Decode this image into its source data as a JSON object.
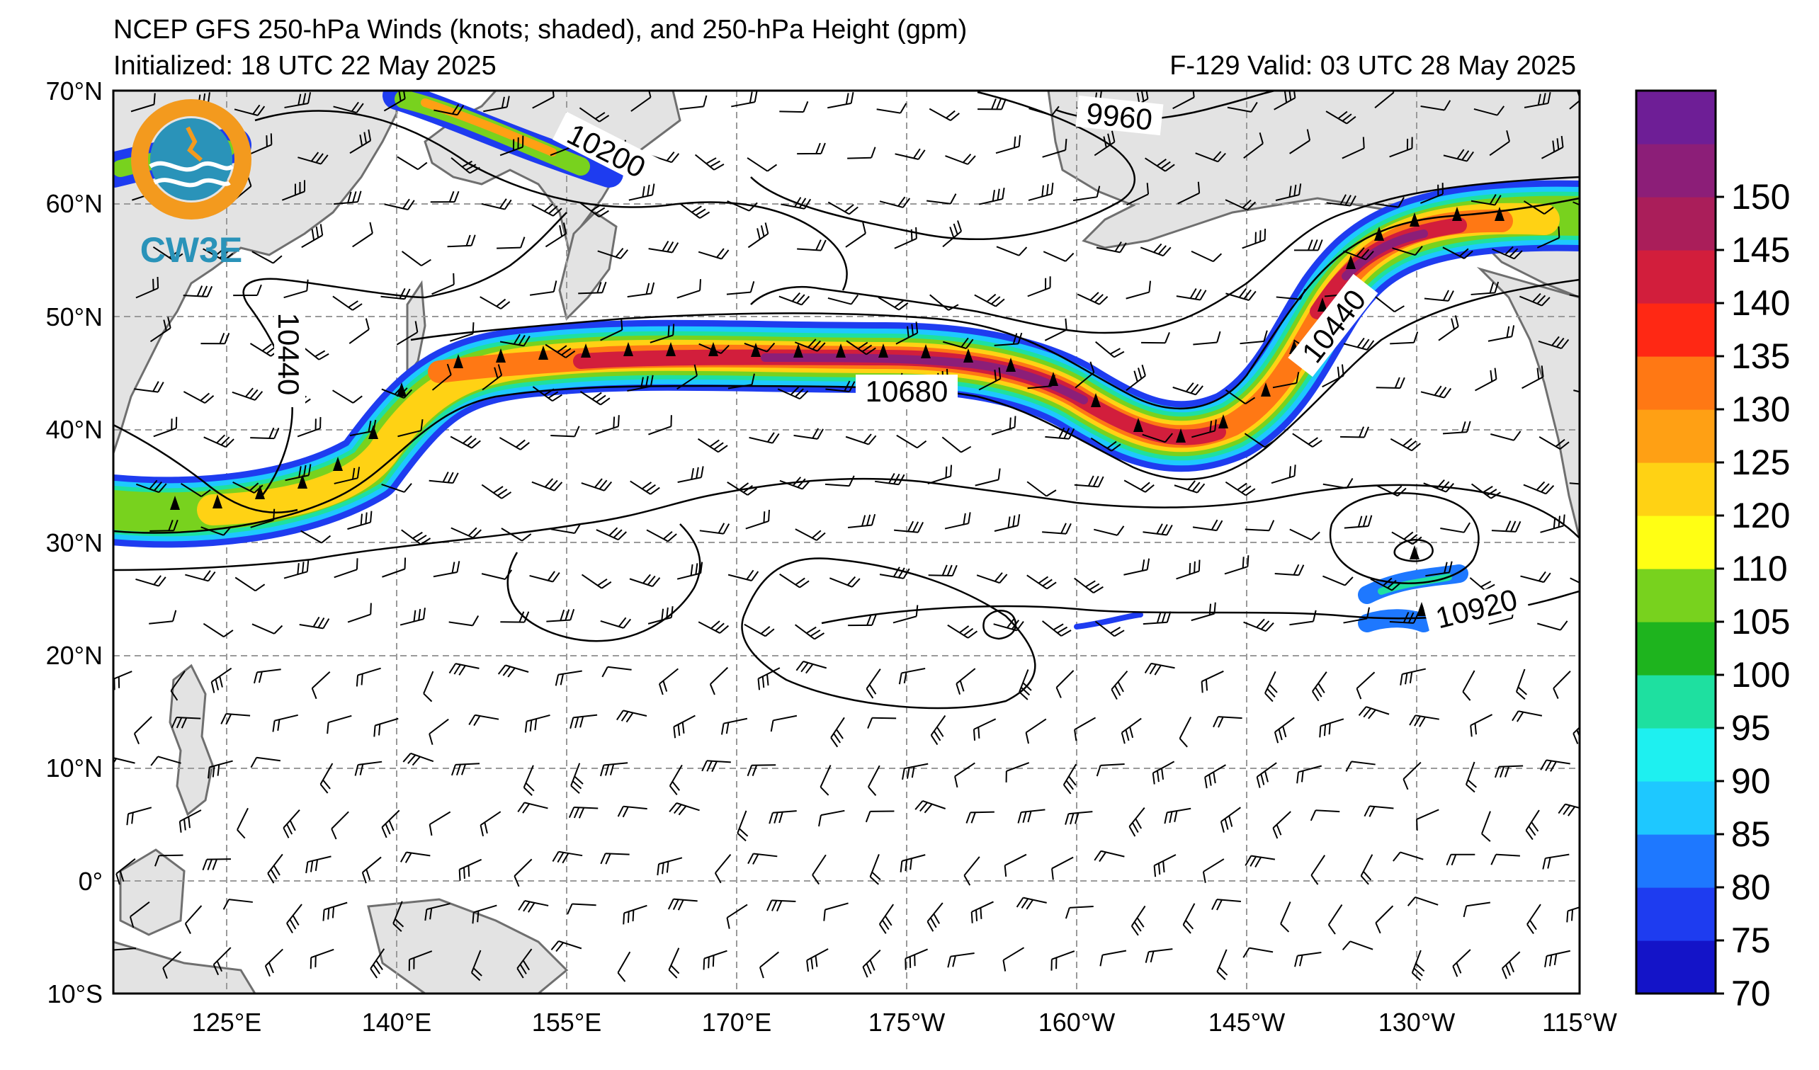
{
  "header": {
    "title": "NCEP GFS 250-hPa Winds (knots; shaded), and 250-hPa Height (gpm)",
    "initialized": "Initialized: 18 UTC 22 May 2025",
    "valid": "F-129  Valid: 03 UTC 28 May 2025"
  },
  "logo": {
    "text": "CW3E"
  },
  "lat_labels": [
    "70°N",
    "60°N",
    "50°N",
    "40°N",
    "30°N",
    "20°N",
    "10°N",
    "0°",
    "10°S"
  ],
  "lon_labels": [
    "125°E",
    "140°E",
    "155°E",
    "170°E",
    "175°W",
    "160°W",
    "145°W",
    "130°W",
    "115°W"
  ],
  "colorbar": {
    "labels": [
      "70",
      "75",
      "80",
      "85",
      "90",
      "95",
      "100",
      "105",
      "110",
      "120",
      "125",
      "130",
      "135",
      "140",
      "145",
      "150"
    ],
    "colors": [
      "#1414c8",
      "#1e3cf0",
      "#1e78ff",
      "#1ec8ff",
      "#1ef0f0",
      "#1ee0a0",
      "#1eb41e",
      "#78d21e",
      "#ffff14",
      "#ffd214",
      "#ffa014",
      "#ff7814",
      "#ff2814",
      "#d21e3c",
      "#aa1e5a",
      "#8c1e78",
      "#6e1e96"
    ]
  },
  "contour_labels": [
    "9960",
    "10200",
    "10440",
    "10680",
    "10440",
    "10920"
  ],
  "colors": {
    "land": "#e3e3e3",
    "coast": "#6f6f6f",
    "grid": "#9a9a9a"
  }
}
